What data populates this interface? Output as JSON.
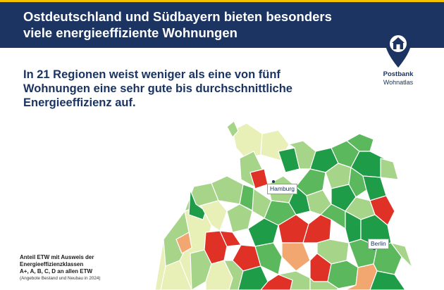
{
  "header": {
    "title_line1": "Ostdeutschland und Südbayern bieten besonders",
    "title_line2": "viele energieeffiziente Wohnungen"
  },
  "logo": {
    "name": "Postbank",
    "sub": "Wohnatlas",
    "icon": "house-pin-icon"
  },
  "subhead": {
    "line1": "In 21 Regionen weist weniger als eine von fünf",
    "line2": "Wohnungen eine sehr gute bis durchschnittliche",
    "line3": "Energieeffizienz auf."
  },
  "map": {
    "labels": {
      "hamburg": "Hamburg",
      "berlin": "Berlin"
    },
    "colors": {
      "dark_green": "#1f9c47",
      "green": "#5bb85c",
      "light_green": "#a6d58a",
      "pale": "#e8f0b8",
      "orange": "#f2a771",
      "red": "#e03127"
    }
  },
  "legend": {
    "title_line1": "Anteil ETW mit Ausweis der",
    "title_line2": "Energieeffizienzklassen",
    "title_line3": "A+, A, B, C, D an allen ETW",
    "note": "(Angebote Bestand und Neubau in 2024)"
  }
}
